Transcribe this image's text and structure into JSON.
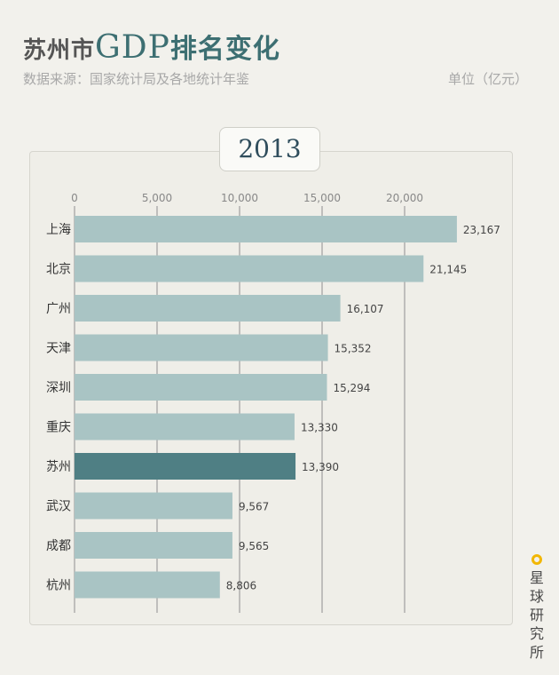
{
  "header": {
    "title_prefix": "苏州市",
    "title_mid": "GDP",
    "title_suffix": "排名变化",
    "source": "数据来源：国家统计局及各地统计年鉴",
    "unit": "单位（亿元）"
  },
  "watermark": "星球研究所",
  "chart_data": {
    "type": "bar",
    "orientation": "horizontal",
    "period": "2013",
    "xlim": [
      0,
      23500
    ],
    "xticks": [
      "0",
      "5,000",
      "10,000",
      "15,000",
      "20,000"
    ],
    "xtick_values": [
      0,
      5000,
      10000,
      15000,
      20000
    ],
    "grid": true,
    "colors": {
      "default": "#a9c4c4",
      "highlight": "#4f7f84"
    },
    "bars": [
      {
        "city": "上海",
        "value": 23167,
        "label": "23,167"
      },
      {
        "city": "北京",
        "value": 21145,
        "label": "21,145"
      },
      {
        "city": "广州",
        "value": 16107,
        "label": "16,107"
      },
      {
        "city": "天津",
        "value": 15352,
        "label": "15,352"
      },
      {
        "city": "深圳",
        "value": 15294,
        "label": "15,294"
      },
      {
        "city": "重庆",
        "value": 13330,
        "label": "13,330"
      },
      {
        "city": "苏州",
        "value": 13390,
        "label": "13,390",
        "highlight": true
      },
      {
        "city": "武汉",
        "value": 9567,
        "label": "9,567"
      },
      {
        "city": "成都",
        "value": 9565,
        "label": "9,565"
      },
      {
        "city": "杭州",
        "value": 8806,
        "label": "8,806"
      }
    ]
  }
}
